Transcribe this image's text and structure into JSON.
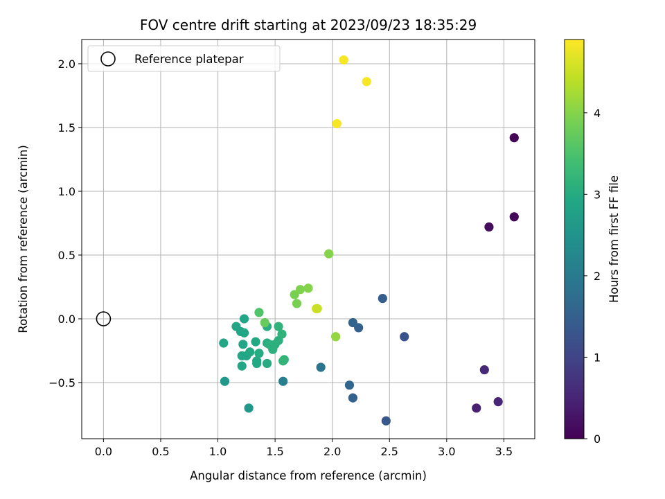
{
  "chart_data": {
    "type": "scatter",
    "title": "FOV centre drift starting at 2023/09/23 18:35:29",
    "xlabel": "Angular distance from reference (arcmin)",
    "ylabel": "Rotation from reference (arcmin)",
    "xlim": [
      -0.19,
      3.77
    ],
    "ylim": [
      -0.94,
      2.19
    ],
    "xticks": [
      0.0,
      0.5,
      1.0,
      1.5,
      2.0,
      2.5,
      3.0,
      3.5
    ],
    "xtick_labels": [
      "0.0",
      "0.5",
      "1.0",
      "1.5",
      "2.0",
      "2.5",
      "3.0",
      "3.5"
    ],
    "yticks": [
      -0.5,
      0.0,
      0.5,
      1.0,
      1.5,
      2.0
    ],
    "ytick_labels": [
      "−0.5",
      "0.0",
      "0.5",
      "1.0",
      "1.5",
      "2.0"
    ],
    "grid": true,
    "legend": {
      "placement": "top-left",
      "entries": [
        "Reference platepar"
      ]
    },
    "reference_point": {
      "x": 0.0,
      "y": 0.0,
      "label": "Reference platepar"
    },
    "colorbar": {
      "label": "Hours from first FF file",
      "min": 0,
      "max": 4.9,
      "ticks": [
        0,
        1,
        2,
        3,
        4
      ],
      "tick_labels": [
        "0",
        "1",
        "2",
        "3",
        "4"
      ],
      "colormap": "viridis"
    },
    "points": [
      {
        "x": 3.59,
        "y": 1.42,
        "c": 0.05
      },
      {
        "x": 3.59,
        "y": 0.8,
        "c": 0.08
      },
      {
        "x": 3.37,
        "y": 0.72,
        "c": 0.15
      },
      {
        "x": 3.33,
        "y": -0.4,
        "c": 0.55
      },
      {
        "x": 3.45,
        "y": -0.65,
        "c": 0.5
      },
      {
        "x": 3.26,
        "y": -0.7,
        "c": 0.45
      },
      {
        "x": 2.63,
        "y": -0.14,
        "c": 1.25
      },
      {
        "x": 2.47,
        "y": -0.8,
        "c": 1.35
      },
      {
        "x": 2.44,
        "y": 0.16,
        "c": 1.45
      },
      {
        "x": 2.23,
        "y": -0.07,
        "c": 1.5
      },
      {
        "x": 2.18,
        "y": -0.03,
        "c": 1.55
      },
      {
        "x": 2.18,
        "y": -0.62,
        "c": 1.5
      },
      {
        "x": 2.15,
        "y": -0.52,
        "c": 1.6
      },
      {
        "x": 1.9,
        "y": -0.38,
        "c": 1.9
      },
      {
        "x": 1.57,
        "y": -0.49,
        "c": 2.05
      },
      {
        "x": 1.06,
        "y": -0.49,
        "c": 2.6
      },
      {
        "x": 1.27,
        "y": -0.7,
        "c": 2.6
      },
      {
        "x": 1.05,
        "y": -0.19,
        "c": 2.9
      },
      {
        "x": 1.16,
        "y": -0.06,
        "c": 2.9
      },
      {
        "x": 1.2,
        "y": -0.1,
        "c": 2.9
      },
      {
        "x": 1.23,
        "y": 0.0,
        "c": 2.9
      },
      {
        "x": 1.23,
        "y": -0.11,
        "c": 2.9
      },
      {
        "x": 1.22,
        "y": -0.2,
        "c": 2.9
      },
      {
        "x": 1.21,
        "y": -0.29,
        "c": 2.9
      },
      {
        "x": 1.21,
        "y": -0.37,
        "c": 2.9
      },
      {
        "x": 1.25,
        "y": -0.29,
        "c": 2.9
      },
      {
        "x": 1.28,
        "y": -0.26,
        "c": 2.95
      },
      {
        "x": 1.33,
        "y": -0.18,
        "c": 2.95
      },
      {
        "x": 1.34,
        "y": -0.33,
        "c": 2.95
      },
      {
        "x": 1.34,
        "y": -0.35,
        "c": 2.95
      },
      {
        "x": 1.36,
        "y": -0.27,
        "c": 3.0
      },
      {
        "x": 1.43,
        "y": -0.19,
        "c": 3.05
      },
      {
        "x": 1.43,
        "y": -0.06,
        "c": 3.05
      },
      {
        "x": 1.45,
        "y": -0.2,
        "c": 3.1
      },
      {
        "x": 1.43,
        "y": -0.35,
        "c": 3.0
      },
      {
        "x": 1.48,
        "y": -0.24,
        "c": 3.1
      },
      {
        "x": 1.5,
        "y": -0.2,
        "c": 3.1
      },
      {
        "x": 1.53,
        "y": -0.17,
        "c": 3.1
      },
      {
        "x": 1.53,
        "y": -0.06,
        "c": 3.15
      },
      {
        "x": 1.56,
        "y": -0.12,
        "c": 3.15
      },
      {
        "x": 1.57,
        "y": -0.33,
        "c": 3.15
      },
      {
        "x": 1.58,
        "y": -0.32,
        "c": 3.2
      },
      {
        "x": 1.36,
        "y": 0.05,
        "c": 3.55
      },
      {
        "x": 1.41,
        "y": -0.03,
        "c": 3.75
      },
      {
        "x": 1.67,
        "y": 0.19,
        "c": 3.9
      },
      {
        "x": 1.69,
        "y": 0.12,
        "c": 3.9
      },
      {
        "x": 1.72,
        "y": 0.23,
        "c": 3.95
      },
      {
        "x": 1.79,
        "y": 0.24,
        "c": 4.0
      },
      {
        "x": 1.86,
        "y": 0.08,
        "c": 4.6
      },
      {
        "x": 1.87,
        "y": 0.08,
        "c": 4.5
      },
      {
        "x": 1.97,
        "y": 0.51,
        "c": 4.0
      },
      {
        "x": 2.03,
        "y": -0.14,
        "c": 4.1
      },
      {
        "x": 2.04,
        "y": 1.53,
        "c": 4.85
      },
      {
        "x": 2.1,
        "y": 2.03,
        "c": 4.85
      },
      {
        "x": 2.3,
        "y": 1.86,
        "c": 4.85
      }
    ]
  }
}
